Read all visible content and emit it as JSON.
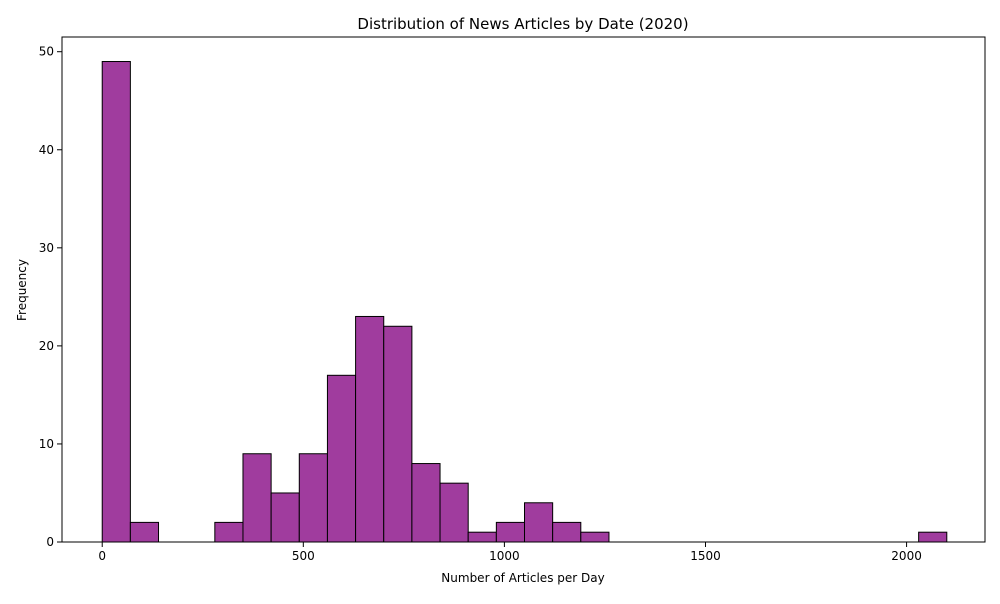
{
  "chart_data": {
    "type": "bar",
    "title": "Distribution of News Articles by Date (2020)",
    "xlabel": "Number of Articles per Day",
    "ylabel": "Frequency",
    "xlim": [
      -100,
      2195
    ],
    "ylim": [
      0,
      51.5
    ],
    "xticks": [
      0,
      500,
      1000,
      1500,
      2000
    ],
    "yticks": [
      0,
      10,
      20,
      30,
      40,
      50
    ],
    "grid": false,
    "legend": "none",
    "bar_color": "#a03c9e",
    "edge_color": "#000000",
    "bins": [
      {
        "start": 0,
        "end": 70,
        "count": 49
      },
      {
        "start": 70,
        "end": 140,
        "count": 2
      },
      {
        "start": 140,
        "end": 210,
        "count": 0
      },
      {
        "start": 210,
        "end": 280,
        "count": 0
      },
      {
        "start": 280,
        "end": 350,
        "count": 2
      },
      {
        "start": 350,
        "end": 420,
        "count": 9
      },
      {
        "start": 420,
        "end": 490,
        "count": 5
      },
      {
        "start": 490,
        "end": 560,
        "count": 9
      },
      {
        "start": 560,
        "end": 630,
        "count": 17
      },
      {
        "start": 630,
        "end": 700,
        "count": 23
      },
      {
        "start": 700,
        "end": 770,
        "count": 22
      },
      {
        "start": 770,
        "end": 840,
        "count": 8
      },
      {
        "start": 840,
        "end": 910,
        "count": 6
      },
      {
        "start": 910,
        "end": 980,
        "count": 1
      },
      {
        "start": 980,
        "end": 1050,
        "count": 2
      },
      {
        "start": 1050,
        "end": 1120,
        "count": 4
      },
      {
        "start": 1120,
        "end": 1190,
        "count": 2
      },
      {
        "start": 1190,
        "end": 1260,
        "count": 1
      },
      {
        "start": 1260,
        "end": 1330,
        "count": 0
      },
      {
        "start": 1330,
        "end": 1400,
        "count": 0
      },
      {
        "start": 1400,
        "end": 1470,
        "count": 0
      },
      {
        "start": 1470,
        "end": 1540,
        "count": 0
      },
      {
        "start": 1540,
        "end": 1610,
        "count": 0
      },
      {
        "start": 1610,
        "end": 1680,
        "count": 0
      },
      {
        "start": 1680,
        "end": 1750,
        "count": 0
      },
      {
        "start": 1750,
        "end": 1820,
        "count": 0
      },
      {
        "start": 1820,
        "end": 1890,
        "count": 0
      },
      {
        "start": 1890,
        "end": 1960,
        "count": 0
      },
      {
        "start": 1960,
        "end": 2030,
        "count": 0
      },
      {
        "start": 2030,
        "end": 2100,
        "count": 1
      }
    ]
  }
}
